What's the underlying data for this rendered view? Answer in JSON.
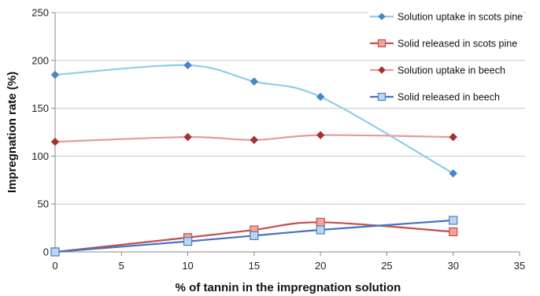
{
  "chart_data": {
    "type": "line",
    "title": "",
    "xlabel": "% of tannin in the impregnation solution",
    "ylabel": "Impregnation rate (%)",
    "xlim": [
      0,
      35
    ],
    "ylim": [
      0,
      250
    ],
    "xticks": [
      0,
      5,
      10,
      15,
      20,
      25,
      30,
      35
    ],
    "yticks": [
      0,
      50,
      100,
      150,
      200,
      250
    ],
    "grid": "horizontal",
    "legend_position": "right",
    "series": [
      {
        "name": "Solution uptake in scots pine",
        "x": [
          0,
          10,
          15,
          20,
          30
        ],
        "y": [
          185,
          195,
          178,
          162,
          82
        ],
        "line_color": "#8ecfe6",
        "marker": "diamond",
        "marker_color": "#4a86c5"
      },
      {
        "name": "Solid released in scots pine",
        "x": [
          0,
          10,
          15,
          20,
          30
        ],
        "y": [
          0,
          15,
          23,
          31,
          21
        ],
        "line_color": "#c0504d",
        "marker": "square",
        "marker_color": "#f2a49d",
        "marker_stroke": "#c0504d"
      },
      {
        "name": "Solution uptake in beech",
        "x": [
          0,
          10,
          15,
          20,
          30
        ],
        "y": [
          115,
          120,
          117,
          122,
          120
        ],
        "line_color": "#e8999a",
        "marker": "diamond",
        "marker_color": "#a53232"
      },
      {
        "name": "Solid released in beech",
        "x": [
          0,
          10,
          15,
          20,
          30
        ],
        "y": [
          0,
          11,
          17,
          23,
          33
        ],
        "line_color": "#4472c4",
        "marker": "square",
        "marker_color": "#bcd6ee",
        "marker_stroke": "#4f81bd"
      }
    ]
  }
}
